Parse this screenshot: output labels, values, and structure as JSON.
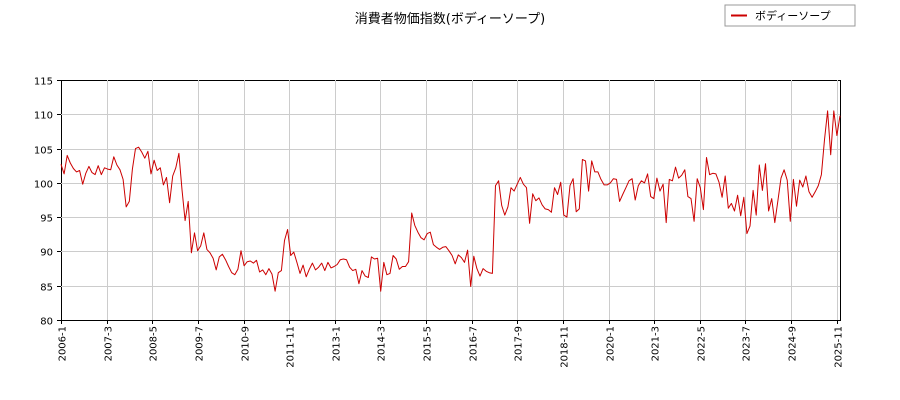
{
  "chart_data": {
    "type": "line",
    "title": "消費者物価指数(ボディーソープ)",
    "xlabel": "",
    "ylabel": "",
    "x_start": "2006-01",
    "x_end": "2025-12",
    "ylim": [
      80,
      115
    ],
    "y_ticks": [
      "80",
      "85",
      "90",
      "95",
      "100",
      "105",
      "110",
      "115"
    ],
    "x_ticks": [
      "2006-1",
      "2007-3",
      "2008-5",
      "2009-7",
      "2010-9",
      "2011-11",
      "2013-1",
      "2014-3",
      "2015-5",
      "2016-7",
      "2017-9",
      "2018-11",
      "2020-1",
      "2021-3",
      "2022-5",
      "2023-7",
      "2024-9",
      "2025-11"
    ],
    "grid": true,
    "legend_position": "top-right",
    "series_color": "#cc0000",
    "series": [
      {
        "name": "ボディーソープ",
        "values": [
          102.7,
          101.3,
          104.0,
          102.9,
          102.1,
          101.6,
          101.8,
          99.8,
          101.4,
          102.4,
          101.5,
          101.2,
          102.5,
          101.2,
          102.2,
          102.0,
          101.9,
          103.8,
          102.6,
          101.9,
          100.5,
          96.5,
          97.3,
          102.0,
          105.0,
          105.2,
          104.5,
          103.6,
          104.6,
          101.3,
          103.3,
          101.8,
          102.2,
          99.7,
          100.8,
          97.1,
          101.0,
          102.2,
          104.3,
          99.0,
          94.5,
          97.3,
          89.8,
          92.7,
          90.1,
          90.8,
          92.7,
          90.3,
          89.8,
          89.0,
          87.3,
          89.2,
          89.6,
          88.8,
          87.8,
          86.9,
          86.6,
          87.4,
          90.1,
          87.9,
          88.5,
          88.6,
          88.3,
          88.7,
          87.0,
          87.3,
          86.6,
          87.5,
          86.7,
          84.2,
          86.9,
          87.2,
          91.6,
          93.2,
          89.4,
          89.9,
          88.4,
          86.8,
          88.0,
          86.3,
          87.4,
          88.3,
          87.3,
          87.7,
          88.3,
          87.2,
          88.4,
          87.6,
          87.8,
          88.1,
          88.8,
          88.9,
          88.8,
          87.7,
          87.2,
          87.4,
          85.3,
          87.2,
          86.4,
          86.2,
          89.2,
          88.9,
          89.0,
          84.2,
          88.4,
          86.6,
          86.8,
          89.4,
          88.9,
          87.4,
          87.8,
          87.8,
          88.5,
          95.6,
          93.8,
          92.8,
          92.0,
          91.7,
          92.6,
          92.8,
          91.0,
          90.6,
          90.3,
          90.6,
          90.7,
          90.1,
          89.4,
          88.2,
          89.5,
          89.1,
          88.4,
          90.2,
          84.9,
          89.3,
          87.5,
          86.4,
          87.5,
          87.1,
          86.9,
          86.8,
          99.6,
          100.3,
          96.7,
          95.3,
          96.5,
          99.3,
          98.8,
          99.8,
          100.8,
          99.8,
          99.3,
          94.1,
          98.4,
          97.4,
          97.8,
          96.8,
          96.2,
          96.1,
          95.7,
          99.3,
          98.3,
          100.1,
          95.3,
          95.0,
          99.6,
          100.6,
          95.8,
          96.2,
          103.4,
          103.2,
          98.8,
          103.2,
          101.6,
          101.6,
          100.5,
          99.7,
          99.7,
          100.0,
          100.6,
          100.5,
          97.3,
          98.3,
          99.3,
          100.3,
          100.6,
          97.5,
          99.6,
          100.3,
          100.0,
          101.3,
          98.0,
          97.7,
          100.7,
          98.8,
          99.8,
          94.2,
          100.5,
          100.3,
          102.3,
          100.7,
          101.1,
          101.9,
          98.0,
          97.7,
          94.4,
          100.6,
          99.3,
          96.1,
          103.7,
          101.2,
          101.4,
          101.3,
          100.1,
          97.9,
          101.0,
          96.3,
          97.0,
          95.9,
          98.2,
          95.2,
          97.9,
          92.6,
          93.7,
          98.9,
          95.3,
          102.6,
          98.9,
          102.8,
          95.9,
          97.7,
          94.2,
          97.4,
          100.7,
          101.9,
          100.4,
          94.4,
          100.5,
          96.6,
          100.4,
          99.4,
          101.0,
          98.7,
          97.9,
          98.7,
          99.6,
          101.2,
          106.3,
          110.5,
          104.1,
          110.5,
          106.9,
          109.8
        ]
      }
    ]
  },
  "legend": {
    "label": "ボディーソープ"
  }
}
